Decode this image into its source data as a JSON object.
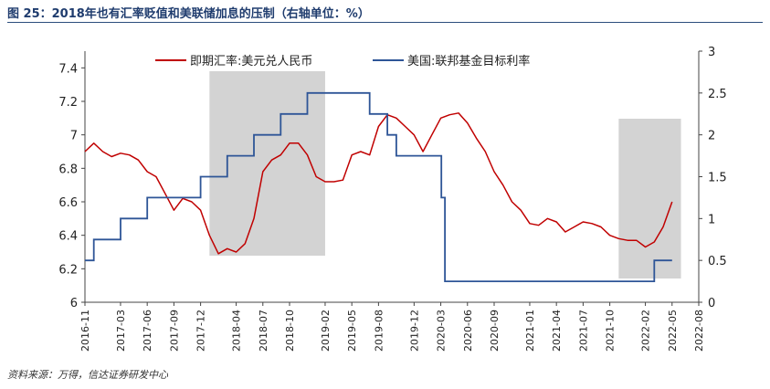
{
  "title": "图 25：2018年也有汇率贬值和美联储加息的压制（右轴单位：%）",
  "source": "资料来源：万得，信达证券研发中心",
  "chart_data": {
    "type": "line",
    "x_ticks": [
      "2016-11",
      "2017-03",
      "2017-06",
      "2017-09",
      "2017-12",
      "2018-04",
      "2018-07",
      "2018-10",
      "2019-02",
      "2019-05",
      "2019-08",
      "2019-12",
      "2020-03",
      "2020-06",
      "2020-09",
      "2021-01",
      "2021-04",
      "2021-07",
      "2021-10",
      "2022-02",
      "2022-05",
      "2022-08"
    ],
    "left_axis": {
      "ylim": [
        6.0,
        7.5
      ],
      "ticks": [
        "6",
        "6.2",
        "6.4",
        "6.6",
        "6.8",
        "7",
        "7.2",
        "7.4"
      ]
    },
    "right_axis": {
      "ylim": [
        0,
        3
      ],
      "ticks": [
        "0",
        "0.5",
        "1",
        "1.5",
        "2",
        "2.5",
        "3"
      ]
    },
    "legend": {
      "placement": "top",
      "entries": [
        "即期汇率:美元兑人民币",
        "美国:联邦基金目标利率"
      ]
    },
    "colors": {
      "fx": "#c00000",
      "rate": "#2e5597",
      "shade": "#d3d3d3",
      "axis": "#444444"
    },
    "shaded_periods": [
      {
        "x": [
          "2018-01",
          "2019-02"
        ]
      },
      {
        "x": [
          "2021-11",
          "2022-06"
        ]
      }
    ],
    "series": [
      {
        "name": "即期汇率:美元兑人民币",
        "axis": "left",
        "x": [
          "2016-11",
          "2016-12",
          "2017-01",
          "2017-02",
          "2017-03",
          "2017-04",
          "2017-05",
          "2017-06",
          "2017-07",
          "2017-08",
          "2017-09",
          "2017-10",
          "2017-11",
          "2017-12",
          "2018-01",
          "2018-02",
          "2018-03",
          "2018-04",
          "2018-05",
          "2018-06",
          "2018-07",
          "2018-08",
          "2018-09",
          "2018-10",
          "2018-11",
          "2018-12",
          "2019-01",
          "2019-02",
          "2019-03",
          "2019-04",
          "2019-05",
          "2019-06",
          "2019-07",
          "2019-08",
          "2019-09",
          "2019-10",
          "2019-11",
          "2019-12",
          "2020-01",
          "2020-02",
          "2020-03",
          "2020-04",
          "2020-05",
          "2020-06",
          "2020-07",
          "2020-08",
          "2020-09",
          "2020-10",
          "2020-11",
          "2020-12",
          "2021-01",
          "2021-02",
          "2021-03",
          "2021-04",
          "2021-05",
          "2021-06",
          "2021-07",
          "2021-08",
          "2021-09",
          "2021-10",
          "2021-11",
          "2021-12",
          "2022-01",
          "2022-02",
          "2022-03",
          "2022-04",
          "2022-05"
        ],
        "values": [
          6.9,
          6.95,
          6.9,
          6.87,
          6.89,
          6.88,
          6.85,
          6.78,
          6.75,
          6.65,
          6.55,
          6.62,
          6.6,
          6.55,
          6.4,
          6.29,
          6.32,
          6.3,
          6.35,
          6.5,
          6.78,
          6.85,
          6.88,
          6.95,
          6.95,
          6.88,
          6.75,
          6.72,
          6.72,
          6.73,
          6.88,
          6.9,
          6.88,
          7.05,
          7.12,
          7.1,
          7.05,
          7.0,
          6.9,
          7.0,
          7.1,
          7.12,
          7.13,
          7.07,
          6.98,
          6.9,
          6.78,
          6.7,
          6.6,
          6.55,
          6.47,
          6.46,
          6.5,
          6.48,
          6.42,
          6.45,
          6.48,
          6.47,
          6.45,
          6.4,
          6.38,
          6.37,
          6.37,
          6.33,
          6.36,
          6.45,
          6.6
        ]
      },
      {
        "name": "美国:联邦基金目标利率",
        "axis": "right",
        "x": [
          "2016-11",
          "2016-12",
          "2017-03",
          "2017-06",
          "2017-12",
          "2018-03",
          "2018-06",
          "2018-09",
          "2018-12",
          "2019-07",
          "2019-09",
          "2019-10",
          "2020-03-03",
          "2020-03-15",
          "2022-03",
          "2022-05"
        ],
        "values": [
          0.5,
          0.75,
          1.0,
          1.25,
          1.5,
          1.75,
          2.0,
          2.25,
          2.5,
          2.25,
          2.0,
          1.75,
          1.25,
          0.25,
          0.5,
          0.5
        ]
      }
    ]
  }
}
